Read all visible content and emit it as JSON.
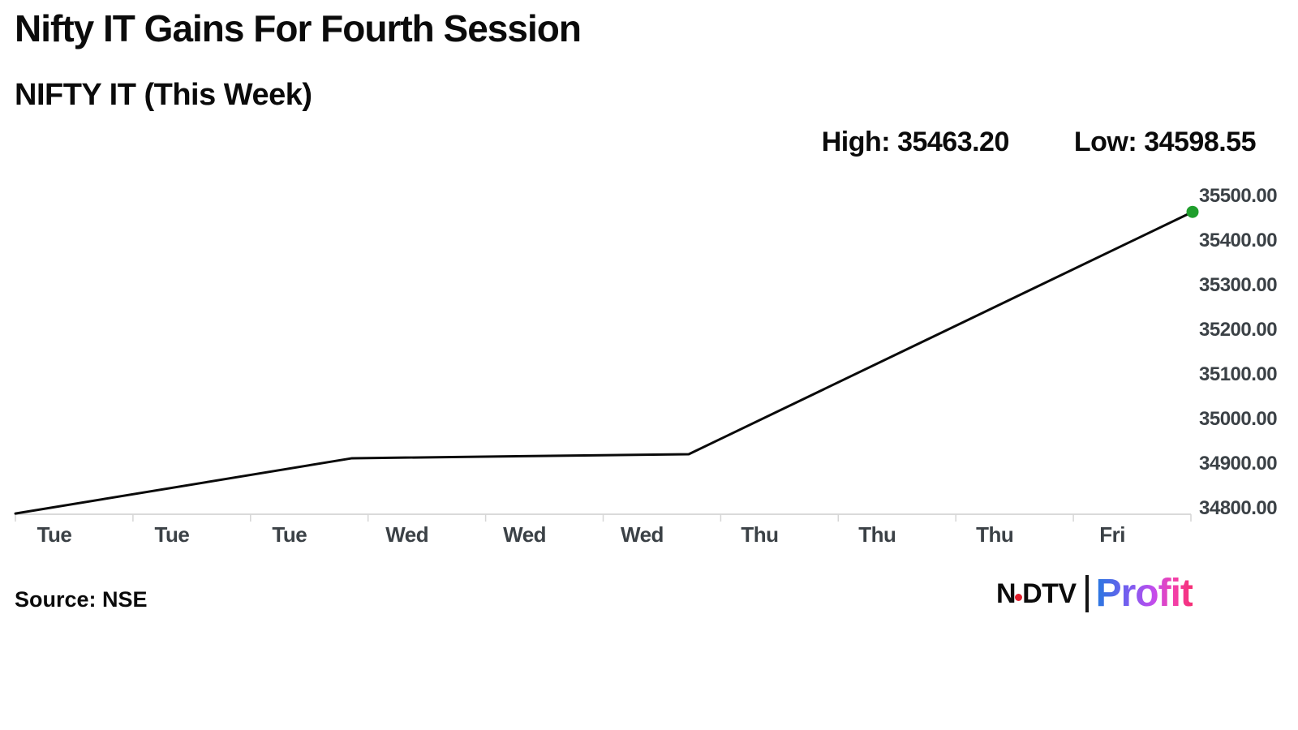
{
  "chart_data": {
    "type": "line",
    "title": "Nifty IT Gains For Fourth Session",
    "subtitle": "NIFTY IT (This Week)",
    "stats": {
      "high_label": "High:",
      "high_value": "35463.20",
      "low_label": "Low:",
      "low_value": "34598.55"
    },
    "high": 35463.2,
    "low": 34598.55,
    "x_labels": [
      "Tue",
      "Tue",
      "Tue",
      "Wed",
      "Wed",
      "Wed",
      "Thu",
      "Thu",
      "Thu",
      "Fri"
    ],
    "y_ticks": [
      "35500.00",
      "35400.00",
      "35300.00",
      "35200.00",
      "35100.00",
      "35000.00",
      "34900.00",
      "34800.00"
    ],
    "y_range": [
      34800,
      35500
    ],
    "xlabel": "",
    "ylabel": "",
    "grid": false,
    "legend": false,
    "y_axis_side": "right",
    "series": [
      {
        "name": "NIFTY IT",
        "color": "#0a0a0a",
        "end_dot_color": "#1f9e2c",
        "points": [
          {
            "t": 0.0,
            "value": 34787
          },
          {
            "t": 0.286,
            "value": 34911
          },
          {
            "t": 0.572,
            "value": 34920
          },
          {
            "t": 1.0,
            "value": 35463.2
          }
        ],
        "values_at_labels": [
          34800,
          34843,
          34886,
          34911,
          34915,
          34918,
          34991,
          35117,
          35242,
          35368
        ]
      }
    ]
  },
  "footer": {
    "source": "Source: NSE",
    "logo": {
      "n": "N",
      "dtv": "DTV",
      "profit": "Profit"
    }
  }
}
